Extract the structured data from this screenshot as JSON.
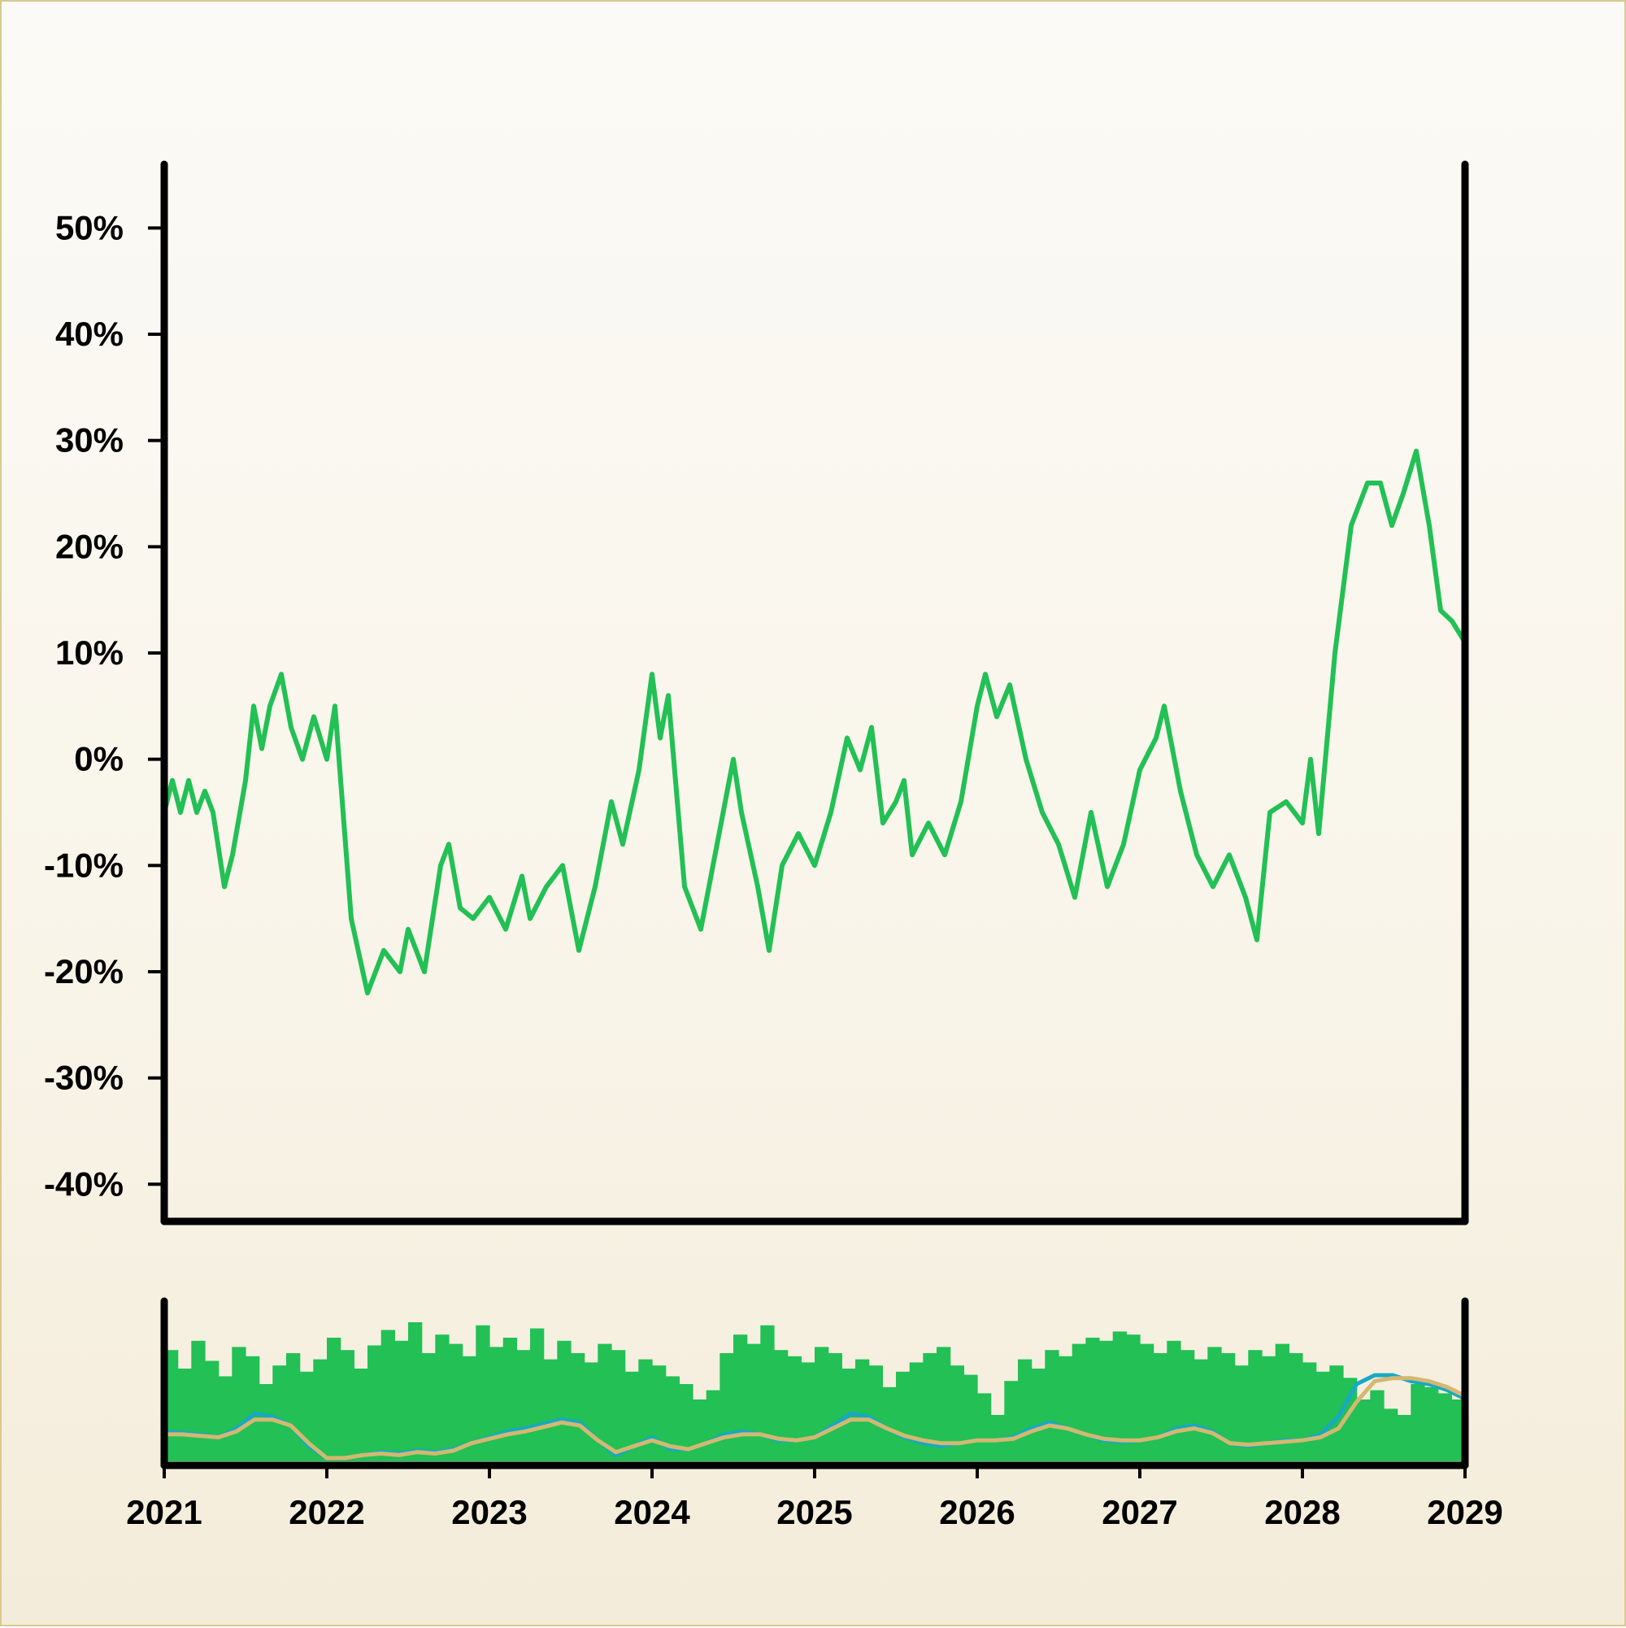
{
  "chart_data": {
    "type": "line",
    "title": "",
    "xlabel": "",
    "ylabel": "",
    "x_range": [
      2021,
      2029
    ],
    "x_ticks": [
      "2021",
      "2022",
      "2023",
      "2024",
      "2025",
      "2026",
      "2027",
      "2028",
      "2029"
    ],
    "ylim": [
      -43.5,
      56
    ],
    "y_ticks": [
      "50%",
      "40%",
      "30%",
      "20%",
      "10%",
      "0%",
      "-10%",
      "-20%",
      "-30%",
      "-40%"
    ],
    "y_tick_values": [
      50,
      40,
      30,
      20,
      10,
      0,
      -10,
      -20,
      -30,
      -40
    ],
    "grid": false,
    "legend": "none",
    "colors": {
      "line": "#22c055",
      "volume": "#22c055",
      "ma_fast": "#17a9c4",
      "ma_slow": "#d4b870",
      "axis": "#000000"
    },
    "series": [
      {
        "values": [
          [
            2021.0,
            -5
          ],
          [
            2021.05,
            -2
          ],
          [
            2021.1,
            -5
          ],
          [
            2021.15,
            -2
          ],
          [
            2021.2,
            -5
          ],
          [
            2021.25,
            -3
          ],
          [
            2021.3,
            -5
          ],
          [
            2021.37,
            -12
          ],
          [
            2021.42,
            -9
          ],
          [
            2021.5,
            -2
          ],
          [
            2021.55,
            5
          ],
          [
            2021.6,
            1
          ],
          [
            2021.65,
            5
          ],
          [
            2021.72,
            8
          ],
          [
            2021.78,
            3
          ],
          [
            2021.85,
            0
          ],
          [
            2021.92,
            4
          ],
          [
            2022.0,
            0
          ],
          [
            2022.05,
            5
          ],
          [
            2022.15,
            -15
          ],
          [
            2022.25,
            -22
          ],
          [
            2022.35,
            -18
          ],
          [
            2022.45,
            -20
          ],
          [
            2022.5,
            -16
          ],
          [
            2022.6,
            -20
          ],
          [
            2022.7,
            -10
          ],
          [
            2022.75,
            -8
          ],
          [
            2022.82,
            -14
          ],
          [
            2022.9,
            -15
          ],
          [
            2023.0,
            -13
          ],
          [
            2023.1,
            -16
          ],
          [
            2023.2,
            -11
          ],
          [
            2023.25,
            -15
          ],
          [
            2023.35,
            -12
          ],
          [
            2023.45,
            -10
          ],
          [
            2023.55,
            -18
          ],
          [
            2023.65,
            -12
          ],
          [
            2023.75,
            -4
          ],
          [
            2023.82,
            -8
          ],
          [
            2023.92,
            -1
          ],
          [
            2024.0,
            8
          ],
          [
            2024.05,
            2
          ],
          [
            2024.1,
            6
          ],
          [
            2024.2,
            -12
          ],
          [
            2024.3,
            -16
          ],
          [
            2024.4,
            -8
          ],
          [
            2024.5,
            0
          ],
          [
            2024.55,
            -5
          ],
          [
            2024.65,
            -12
          ],
          [
            2024.72,
            -18
          ],
          [
            2024.8,
            -10
          ],
          [
            2024.9,
            -7
          ],
          [
            2025.0,
            -10
          ],
          [
            2025.1,
            -5
          ],
          [
            2025.2,
            2
          ],
          [
            2025.28,
            -1
          ],
          [
            2025.35,
            3
          ],
          [
            2025.42,
            -6
          ],
          [
            2025.5,
            -4
          ],
          [
            2025.55,
            -2
          ],
          [
            2025.6,
            -9
          ],
          [
            2025.7,
            -6
          ],
          [
            2025.8,
            -9
          ],
          [
            2025.9,
            -4
          ],
          [
            2026.0,
            5
          ],
          [
            2026.05,
            8
          ],
          [
            2026.12,
            4
          ],
          [
            2026.2,
            7
          ],
          [
            2026.3,
            0
          ],
          [
            2026.4,
            -5
          ],
          [
            2026.5,
            -8
          ],
          [
            2026.6,
            -13
          ],
          [
            2026.7,
            -5
          ],
          [
            2026.8,
            -12
          ],
          [
            2026.9,
            -8
          ],
          [
            2027.0,
            -1
          ],
          [
            2027.1,
            2
          ],
          [
            2027.15,
            5
          ],
          [
            2027.25,
            -3
          ],
          [
            2027.35,
            -9
          ],
          [
            2027.45,
            -12
          ],
          [
            2027.55,
            -9
          ],
          [
            2027.65,
            -13
          ],
          [
            2027.72,
            -17
          ],
          [
            2027.8,
            -5
          ],
          [
            2027.9,
            -4
          ],
          [
            2028.0,
            -6
          ],
          [
            2028.05,
            0
          ],
          [
            2028.1,
            -7
          ],
          [
            2028.2,
            10
          ],
          [
            2028.3,
            22
          ],
          [
            2028.4,
            26
          ],
          [
            2028.48,
            26
          ],
          [
            2028.55,
            22
          ],
          [
            2028.62,
            25
          ],
          [
            2028.7,
            29
          ],
          [
            2028.78,
            22
          ],
          [
            2028.85,
            14
          ],
          [
            2028.92,
            13
          ],
          [
            2029.0,
            11
          ]
        ]
      }
    ],
    "volume_panel": {
      "type": "bar",
      "values_relative": [
        0.72,
        0.6,
        0.78,
        0.65,
        0.55,
        0.74,
        0.68,
        0.5,
        0.62,
        0.7,
        0.58,
        0.66,
        0.8,
        0.72,
        0.6,
        0.75,
        0.85,
        0.78,
        0.9,
        0.7,
        0.82,
        0.76,
        0.68,
        0.88,
        0.74,
        0.8,
        0.72,
        0.86,
        0.66,
        0.78,
        0.7,
        0.64,
        0.76,
        0.72,
        0.58,
        0.66,
        0.62,
        0.55,
        0.5,
        0.4,
        0.46,
        0.7,
        0.82,
        0.76,
        0.88,
        0.72,
        0.68,
        0.64,
        0.74,
        0.7,
        0.6,
        0.66,
        0.62,
        0.48,
        0.58,
        0.64,
        0.7,
        0.74,
        0.62,
        0.56,
        0.44,
        0.3,
        0.52,
        0.66,
        0.6,
        0.72,
        0.68,
        0.76,
        0.8,
        0.78,
        0.84,
        0.82,
        0.76,
        0.7,
        0.78,
        0.72,
        0.66,
        0.74,
        0.7,
        0.62,
        0.72,
        0.68,
        0.76,
        0.7,
        0.64,
        0.58,
        0.62,
        0.54,
        0.4,
        0.46,
        0.34,
        0.3,
        0.5,
        0.48,
        0.44,
        0.4
      ],
      "moving_average_fast_relative": [
        0.18,
        0.17,
        0.16,
        0.14,
        0.2,
        0.3,
        0.28,
        0.22,
        0.08,
        0.0,
        0.0,
        0.02,
        0.04,
        0.03,
        0.05,
        0.04,
        0.06,
        0.1,
        0.14,
        0.18,
        0.2,
        0.23,
        0.26,
        0.24,
        0.12,
        0.02,
        0.08,
        0.14,
        0.06,
        0.06,
        0.1,
        0.16,
        0.18,
        0.16,
        0.12,
        0.12,
        0.14,
        0.22,
        0.3,
        0.28,
        0.2,
        0.14,
        0.1,
        0.08,
        0.1,
        0.12,
        0.12,
        0.14,
        0.2,
        0.24,
        0.2,
        0.16,
        0.12,
        0.11,
        0.12,
        0.14,
        0.2,
        0.22,
        0.18,
        0.1,
        0.08,
        0.1,
        0.12,
        0.12,
        0.16,
        0.28,
        0.5,
        0.56,
        0.56,
        0.52,
        0.5,
        0.46,
        0.4
      ],
      "moving_average_slow_relative": [
        0.16,
        0.16,
        0.15,
        0.14,
        0.18,
        0.26,
        0.26,
        0.22,
        0.1,
        0.0,
        0.0,
        0.02,
        0.03,
        0.02,
        0.04,
        0.03,
        0.05,
        0.1,
        0.13,
        0.16,
        0.18,
        0.21,
        0.24,
        0.22,
        0.12,
        0.04,
        0.08,
        0.12,
        0.08,
        0.06,
        0.1,
        0.14,
        0.16,
        0.16,
        0.13,
        0.12,
        0.14,
        0.2,
        0.26,
        0.26,
        0.2,
        0.15,
        0.12,
        0.1,
        0.1,
        0.12,
        0.12,
        0.13,
        0.18,
        0.22,
        0.2,
        0.16,
        0.13,
        0.12,
        0.12,
        0.14,
        0.18,
        0.2,
        0.17,
        0.1,
        0.09,
        0.1,
        0.11,
        0.12,
        0.14,
        0.2,
        0.38,
        0.52,
        0.54,
        0.54,
        0.52,
        0.48,
        0.42
      ]
    }
  }
}
